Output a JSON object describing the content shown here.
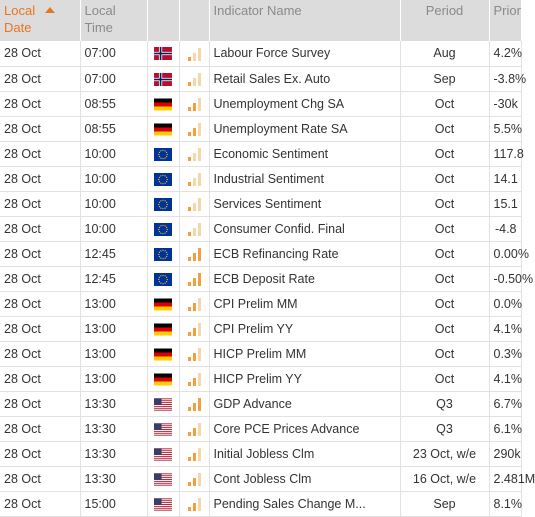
{
  "header": {
    "date_line1": "Local",
    "date_line2": "Date",
    "time_line1": "Local",
    "time_line2": "Time",
    "indicator": "Indicator Name",
    "period": "Period",
    "prior": "Prior"
  },
  "colors": {
    "importance_active": "#f2a03d",
    "importance_inactive": "#f5d6a8",
    "sort_accent": "#e8741e"
  },
  "rows": [
    {
      "date": "28 Oct",
      "time": "07:00",
      "flag": "norway",
      "importance": 1,
      "name": "Labour Force Survey",
      "period": "Aug",
      "prior": "4.2%"
    },
    {
      "date": "28 Oct",
      "time": "07:00",
      "flag": "norway",
      "importance": 1,
      "name": "Retail Sales Ex. Auto",
      "period": "Sep",
      "prior": "-3.8%"
    },
    {
      "date": "28 Oct",
      "time": "08:55",
      "flag": "germany",
      "importance": 2,
      "name": "Unemployment Chg SA",
      "period": "Oct",
      "prior": "-30k"
    },
    {
      "date": "28 Oct",
      "time": "08:55",
      "flag": "germany",
      "importance": 2,
      "name": "Unemployment Rate SA",
      "period": "Oct",
      "prior": "5.5%"
    },
    {
      "date": "28 Oct",
      "time": "10:00",
      "flag": "eu",
      "importance": 1,
      "name": "Economic Sentiment",
      "period": "Oct",
      "prior": "117.8"
    },
    {
      "date": "28 Oct",
      "time": "10:00",
      "flag": "eu",
      "importance": 1,
      "name": "Industrial Sentiment",
      "period": "Oct",
      "prior": "14.1"
    },
    {
      "date": "28 Oct",
      "time": "10:00",
      "flag": "eu",
      "importance": 1,
      "name": "Services Sentiment",
      "period": "Oct",
      "prior": "15.1"
    },
    {
      "date": "28 Oct",
      "time": "10:00",
      "flag": "eu",
      "importance": 1,
      "name": "Consumer Confid. Final",
      "period": "Oct",
      "prior": "-4.8"
    },
    {
      "date": "28 Oct",
      "time": "12:45",
      "flag": "eu",
      "importance": 3,
      "name": "ECB Refinancing Rate",
      "period": "Oct",
      "prior": "0.00%"
    },
    {
      "date": "28 Oct",
      "time": "12:45",
      "flag": "eu",
      "importance": 3,
      "name": "ECB Deposit Rate",
      "period": "Oct",
      "prior": "-0.50%"
    },
    {
      "date": "28 Oct",
      "time": "13:00",
      "flag": "germany",
      "importance": 2,
      "name": "CPI Prelim MM",
      "period": "Oct",
      "prior": "0.0%"
    },
    {
      "date": "28 Oct",
      "time": "13:00",
      "flag": "germany",
      "importance": 2,
      "name": "CPI Prelim YY",
      "period": "Oct",
      "prior": "4.1%"
    },
    {
      "date": "28 Oct",
      "time": "13:00",
      "flag": "germany",
      "importance": 2,
      "name": "HICP Prelim MM",
      "period": "Oct",
      "prior": "0.3%"
    },
    {
      "date": "28 Oct",
      "time": "13:00",
      "flag": "germany",
      "importance": 2,
      "name": "HICP Prelim YY",
      "period": "Oct",
      "prior": "4.1%"
    },
    {
      "date": "28 Oct",
      "time": "13:30",
      "flag": "usa",
      "importance": 3,
      "name": "GDP Advance",
      "period": "Q3",
      "prior": "6.7%"
    },
    {
      "date": "28 Oct",
      "time": "13:30",
      "flag": "usa",
      "importance": 2,
      "name": "Core PCE Prices Advance",
      "period": "Q3",
      "prior": "6.1%"
    },
    {
      "date": "28 Oct",
      "time": "13:30",
      "flag": "usa",
      "importance": 2,
      "name": "Initial Jobless Clm",
      "period": "23 Oct, w/e",
      "prior": "290k"
    },
    {
      "date": "28 Oct",
      "time": "13:30",
      "flag": "usa",
      "importance": 2,
      "name": "Cont Jobless Clm",
      "period": "16 Oct, w/e",
      "prior": "2.481M"
    },
    {
      "date": "28 Oct",
      "time": "15:00",
      "flag": "usa",
      "importance": 2,
      "name": "Pending Sales Change M...",
      "period": "Sep",
      "prior": "8.1%"
    }
  ]
}
